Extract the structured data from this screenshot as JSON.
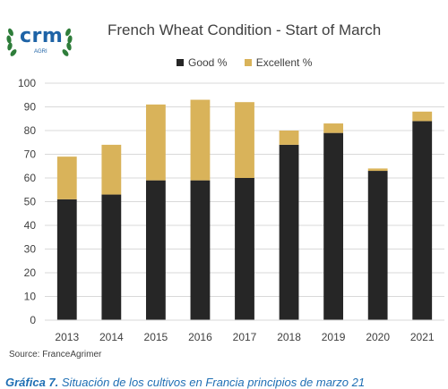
{
  "logo": {
    "name": "crm",
    "sub": "AGRI"
  },
  "source": "Source: FranceAgrimer",
  "caption": {
    "label": "Gráfica 7.",
    "text": "Situación de los cultivos en Francia principios de marzo 21"
  },
  "colors": {
    "good": "#262626",
    "excellent": "#d9b35a",
    "grid": "#d9d9d9",
    "axis_text": "#404040"
  },
  "chart_data": {
    "type": "bar",
    "stacked": true,
    "title": "French Wheat Condition - Start of March",
    "xlabel": "",
    "ylabel": "",
    "categories": [
      "2013",
      "2014",
      "2015",
      "2016",
      "2017",
      "2018",
      "2019",
      "2020",
      "2021"
    ],
    "series": [
      {
        "name": "Good %",
        "values": [
          51,
          53,
          59,
          59,
          60,
          74,
          79,
          63,
          84
        ]
      },
      {
        "name": "Excellent %",
        "values": [
          18,
          21,
          32,
          34,
          32,
          6,
          4,
          1,
          4
        ]
      }
    ],
    "ylim": [
      0,
      100
    ],
    "yticks": [
      0,
      10,
      20,
      30,
      40,
      50,
      60,
      70,
      80,
      90,
      100
    ],
    "grid": true,
    "legend": "top"
  }
}
